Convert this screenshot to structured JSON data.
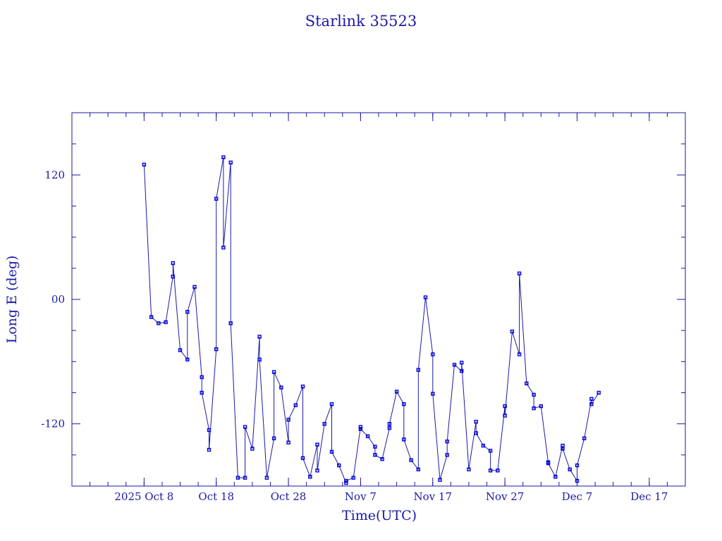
{
  "colors": {
    "axis": "#1a1aa6",
    "marker": "#0000dd",
    "background": "#ffffff"
  },
  "chart_data": {
    "type": "line",
    "title": "Starlink 35523",
    "xlabel": "Time(UTC)",
    "ylabel": "Long E (deg)",
    "x_ticks": [
      "2025 Oct 8",
      "Oct 18",
      "Oct 28",
      "Nov 7",
      "Nov 17",
      "Nov 27",
      "Dec 7",
      "Dec 17"
    ],
    "x_tick_dates": [
      "2025-10-08",
      "2025-10-18",
      "2025-10-28",
      "2025-11-07",
      "2025-11-17",
      "2025-11-27",
      "2025-12-07",
      "2025-12-17"
    ],
    "y_ticks": [
      "-120",
      "00",
      "120"
    ],
    "xlim": [
      "2025-09-28",
      "2025-12-22"
    ],
    "ylim": [
      -180,
      180
    ],
    "grid": false,
    "marker": "square",
    "series": [
      {
        "x": [
          "2025-10-08",
          "2025-10-09",
          "2025-10-10",
          "2025-10-11",
          "2025-10-12",
          "2025-10-12",
          "2025-10-13",
          "2025-10-14",
          "2025-10-14",
          "2025-10-15",
          "2025-10-16",
          "2025-10-16",
          "2025-10-17",
          "2025-10-17",
          "2025-10-18",
          "2025-10-18",
          "2025-10-19",
          "2025-10-19",
          "2025-10-20",
          "2025-10-20",
          "2025-10-21",
          "2025-10-22",
          "2025-10-22",
          "2025-10-23",
          "2025-10-24",
          "2025-10-24",
          "2025-10-25",
          "2025-10-26",
          "2025-10-26",
          "2025-10-27",
          "2025-10-28",
          "2025-10-28",
          "2025-10-29",
          "2025-10-30",
          "2025-10-30",
          "2025-10-31",
          "2025-11-01",
          "2025-11-01",
          "2025-11-02",
          "2025-11-03",
          "2025-11-03",
          "2025-11-04",
          "2025-11-05",
          "2025-11-05",
          "2025-11-06",
          "2025-11-07",
          "2025-11-07",
          "2025-11-08",
          "2025-11-09",
          "2025-11-09",
          "2025-11-10",
          "2025-11-11",
          "2025-11-11",
          "2025-11-12",
          "2025-11-13",
          "2025-11-13",
          "2025-11-14",
          "2025-11-15",
          "2025-11-15",
          "2025-11-16",
          "2025-11-17",
          "2025-11-17",
          "2025-11-18",
          "2025-11-19",
          "2025-11-19",
          "2025-11-20",
          "2025-11-21",
          "2025-11-21",
          "2025-11-22",
          "2025-11-23",
          "2025-11-23",
          "2025-11-24",
          "2025-11-25",
          "2025-11-25",
          "2025-11-26",
          "2025-11-27",
          "2025-11-27",
          "2025-11-28",
          "2025-11-29",
          "2025-11-29",
          "2025-11-30",
          "2025-12-01",
          "2025-12-01",
          "2025-12-02",
          "2025-12-03",
          "2025-12-03",
          "2025-12-04",
          "2025-12-05",
          "2025-12-05",
          "2025-12-06",
          "2025-12-07",
          "2025-12-07",
          "2025-12-08",
          "2025-12-09",
          "2025-12-09",
          "2025-12-10"
        ],
        "y": [
          130,
          -17,
          -23,
          -22,
          22,
          35,
          -49,
          -58,
          -12,
          12,
          -75,
          -90,
          -126,
          -145,
          -48,
          97,
          137,
          50,
          132,
          -23,
          -172,
          -172,
          -123,
          -144,
          -36,
          -58,
          -172,
          -134,
          -70,
          -85,
          -138,
          -116,
          -102,
          -84,
          -153,
          -171,
          -140,
          -165,
          -120,
          -101,
          -147,
          -160,
          -177,
          -175,
          -172,
          -123,
          -125,
          -132,
          -142,
          -150,
          -154,
          -124,
          -120,
          -89,
          -101,
          -135,
          -155,
          -164,
          -68,
          2,
          -53,
          -91,
          -174,
          -150,
          -137,
          -63,
          -69,
          -61,
          -164,
          -118,
          -129,
          -141,
          -146,
          -165,
          -165,
          -103,
          -112,
          -31,
          -53,
          25,
          -81,
          -92,
          -105,
          -103,
          -157,
          -158,
          -171,
          -141,
          -144,
          -164,
          -175,
          -160,
          -134,
          -96,
          -101,
          -90
        ]
      }
    ]
  }
}
